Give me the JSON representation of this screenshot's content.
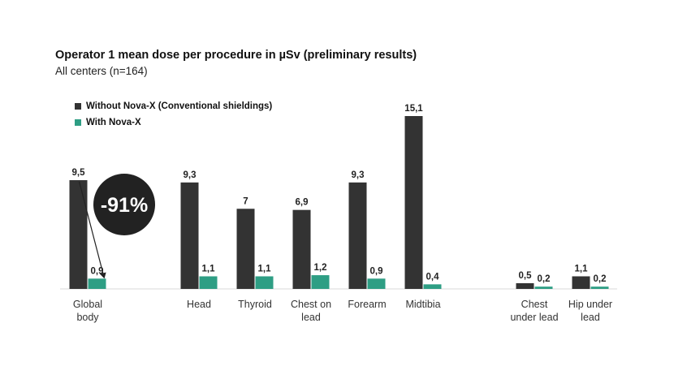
{
  "chart_data": {
    "type": "bar",
    "title": "Operator 1 mean dose per procedure in µSv (preliminary results)",
    "subtitle": "All centers (n=164)",
    "xlabel": "",
    "ylabel": "",
    "ylim": [
      0,
      15.1
    ],
    "grid": false,
    "legend_position": "top-left",
    "categories": [
      [
        "Global",
        "body"
      ],
      [
        "Head"
      ],
      [
        "Thyroid"
      ],
      [
        "Chest on",
        "lead"
      ],
      [
        "Forearm"
      ],
      [
        "Midtibia"
      ],
      [
        "Chest",
        "under lead"
      ],
      [
        "Hip under",
        "lead"
      ]
    ],
    "series": [
      {
        "name": "Without Nova-X (Conventional shieldings)",
        "color": "#333333",
        "values": [
          9.5,
          9.3,
          7,
          6.9,
          9.3,
          15.1,
          0.5,
          1.1
        ],
        "labels": [
          "9,5",
          "9,3",
          "7",
          "6,9",
          "9,3",
          "15,1",
          "0,5",
          "1,1"
        ]
      },
      {
        "name": "With Nova-X",
        "color": "#2e9e84",
        "values": [
          0.9,
          1.1,
          1.1,
          1.2,
          0.9,
          0.4,
          0.2,
          0.2
        ],
        "labels": [
          "0,9",
          "1,1",
          "1,1",
          "1,2",
          "0,9",
          "0,4",
          "0,2",
          "0,2"
        ]
      }
    ],
    "annotation": {
      "text": "-91%",
      "category": [
        "Global",
        "body"
      ],
      "arrow_from_value": 9.5,
      "arrow_to_value": 0.9
    }
  }
}
